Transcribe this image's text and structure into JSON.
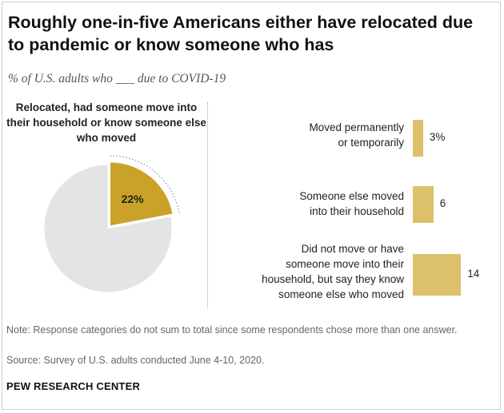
{
  "title": "Roughly one-in-five Americans either have relocated due to pandemic or know someone who has",
  "subtitle": "% of U.S. adults who ___ due to COVID-19",
  "chart_data": [
    {
      "type": "pie",
      "heading": "Relocated, had someone move into their household or know someone else who moved",
      "slices": [
        {
          "label": "Relocated, had someone move into their household or know someone else who moved",
          "value": 22,
          "display": "22%",
          "color": "#c9a227"
        },
        {
          "label": "",
          "value": 78,
          "display": "",
          "color": "#e4e4e4"
        }
      ]
    },
    {
      "type": "bar",
      "orientation": "horizontal",
      "categories": [
        "Moved permanently or temporarily",
        "Someone else moved into their household",
        "Did not move or have someone move into their household, but say they know someone else who moved"
      ],
      "values": [
        3,
        6,
        14
      ],
      "value_labels": [
        "3%",
        "6",
        "14"
      ],
      "color": "#dcc06a"
    }
  ],
  "bar_label_lines": [
    [
      "Moved permanently",
      "or temporarily"
    ],
    [
      "Someone else moved",
      "into their household"
    ],
    [
      "Did not move or have",
      "someone move into their",
      "household, but say they know",
      "someone else who moved"
    ]
  ],
  "note": "Note: Response categories do not sum to total since some respondents chose more than one answer.",
  "source": "Source: Survey of U.S. adults conducted June 4-10, 2020.",
  "brand": "PEW RESEARCH CENTER"
}
